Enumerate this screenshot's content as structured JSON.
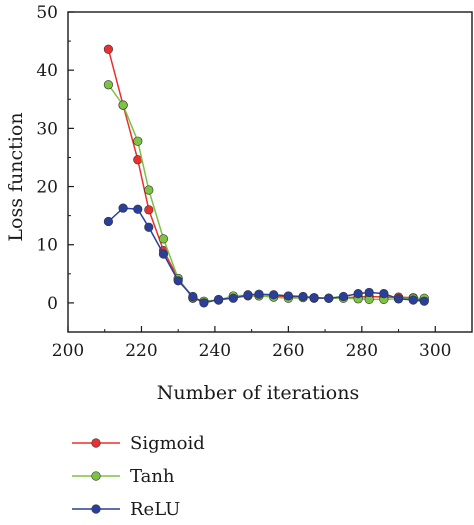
{
  "chart_data": {
    "type": "line",
    "title": "",
    "xlabel": "Number of iterations",
    "ylabel": "Loss function",
    "xlim": [
      200,
      310
    ],
    "ylim": [
      -5,
      50
    ],
    "xticks": [
      200,
      220,
      240,
      260,
      280,
      300
    ],
    "yticks": [
      0,
      10,
      20,
      30,
      40,
      50
    ],
    "grid": false,
    "legend_position": "bottom-left",
    "x": [
      211,
      215,
      219,
      222,
      226,
      230,
      234,
      237,
      241,
      245,
      249,
      252,
      256,
      260,
      264,
      267,
      271,
      275,
      279,
      282,
      286,
      290,
      294,
      297
    ],
    "series": [
      {
        "name": "Sigmoid",
        "color": "#e8302e",
        "values": [
          43.6,
          34.0,
          24.6,
          16.0,
          9.0,
          4.2,
          0.8,
          0.2,
          0.5,
          0.9,
          1.2,
          1.2,
          1.1,
          1.1,
          1.0,
          0.8,
          0.8,
          0.9,
          1.0,
          1.1,
          1.0,
          1.0,
          0.9,
          0.4
        ]
      },
      {
        "name": "Tanh",
        "color": "#7dc242",
        "values": [
          37.5,
          34.0,
          27.8,
          19.4,
          11.0,
          4.2,
          0.9,
          0.3,
          0.5,
          1.2,
          1.3,
          1.2,
          1.0,
          0.8,
          0.9,
          0.9,
          0.8,
          0.8,
          0.7,
          0.6,
          0.6,
          0.7,
          0.8,
          0.8
        ]
      },
      {
        "name": "ReLU",
        "color": "#2a3f9c",
        "values": [
          14.0,
          16.3,
          16.1,
          13.0,
          8.4,
          3.8,
          1.1,
          0.0,
          0.6,
          0.8,
          1.4,
          1.5,
          1.4,
          1.2,
          1.1,
          0.9,
          0.8,
          1.1,
          1.6,
          1.8,
          1.6,
          0.7,
          0.5,
          0.3
        ]
      }
    ]
  }
}
